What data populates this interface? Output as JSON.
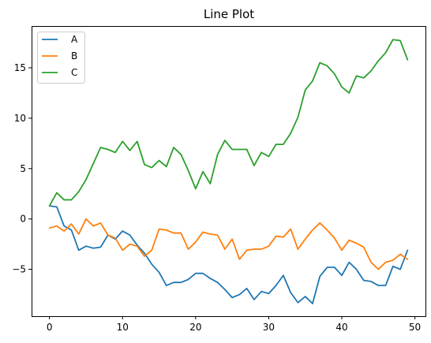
{
  "chart_data": {
    "type": "line",
    "title": "Line Plot",
    "xlabel": "",
    "ylabel": "",
    "xlim": [
      -2.45,
      51.45
    ],
    "ylim": [
      -9.65,
      19.15
    ],
    "grid": false,
    "legend_position": "top-left",
    "x_ticks": [
      0,
      10,
      20,
      30,
      40,
      50
    ],
    "y_ticks": [
      -5,
      0,
      5,
      10,
      15
    ],
    "x_tick_labels": [
      "0",
      "10",
      "20",
      "30",
      "40",
      "50"
    ],
    "y_tick_labels": [
      "−5",
      "0",
      "5",
      "10",
      "15"
    ],
    "x": [
      0,
      1,
      2,
      3,
      4,
      5,
      6,
      7,
      8,
      9,
      10,
      11,
      12,
      13,
      14,
      15,
      16,
      17,
      18,
      19,
      20,
      21,
      22,
      23,
      24,
      25,
      26,
      27,
      28,
      29,
      30,
      31,
      32,
      33,
      34,
      35,
      36,
      37,
      38,
      39,
      40,
      41,
      42,
      43,
      44,
      45,
      46,
      47,
      48,
      49
    ],
    "series": [
      {
        "name": "A",
        "color": "#1f77b4",
        "values": [
          1.3,
          1.2,
          -0.7,
          -1.1,
          -3.1,
          -2.7,
          -2.9,
          -2.8,
          -1.6,
          -2.0,
          -1.2,
          -1.6,
          -2.6,
          -3.4,
          -4.5,
          -5.3,
          -6.6,
          -6.3,
          -6.3,
          -6.0,
          -5.4,
          -5.4,
          -5.9,
          -6.3,
          -7.0,
          -7.8,
          -7.5,
          -6.9,
          -8.0,
          -7.2,
          -7.4,
          -6.6,
          -5.6,
          -7.3,
          -8.3,
          -7.7,
          -8.4,
          -5.7,
          -4.8,
          -4.8,
          -5.6,
          -4.3,
          -5.0,
          -6.1,
          -6.2,
          -6.6,
          -6.6,
          -4.7,
          -5.0,
          -3.1
        ]
      },
      {
        "name": "B",
        "color": "#ff7f0e",
        "values": [
          -0.9,
          -0.7,
          -1.2,
          -0.5,
          -1.5,
          0.0,
          -0.7,
          -0.4,
          -1.6,
          -1.9,
          -3.1,
          -2.5,
          -2.7,
          -3.7,
          -3.1,
          -1.0,
          -1.1,
          -1.4,
          -1.4,
          -3.0,
          -2.3,
          -1.3,
          -1.5,
          -1.6,
          -3.0,
          -2.0,
          -4.0,
          -3.1,
          -3.0,
          -3.0,
          -2.7,
          -1.7,
          -1.8,
          -1.0,
          -3.0,
          -2.0,
          -1.1,
          -0.4,
          -1.1,
          -1.9,
          -3.1,
          -2.1,
          -2.4,
          -2.8,
          -4.3,
          -5.0,
          -4.3,
          -4.1,
          -3.5,
          -4.0
        ]
      },
      {
        "name": "C",
        "color": "#2ca02c",
        "values": [
          1.3,
          2.6,
          1.9,
          1.9,
          2.7,
          3.9,
          5.5,
          7.1,
          6.9,
          6.6,
          7.7,
          6.8,
          7.7,
          5.4,
          5.1,
          5.8,
          5.2,
          7.1,
          6.4,
          4.8,
          3.0,
          4.7,
          3.5,
          6.4,
          7.8,
          6.9,
          6.9,
          6.9,
          5.3,
          6.6,
          6.2,
          7.4,
          7.4,
          8.5,
          10.1,
          12.8,
          13.7,
          15.5,
          15.2,
          14.4,
          13.1,
          12.5,
          14.2,
          14.0,
          14.7,
          15.7,
          16.5,
          17.8,
          17.7,
          15.8
        ]
      }
    ]
  }
}
